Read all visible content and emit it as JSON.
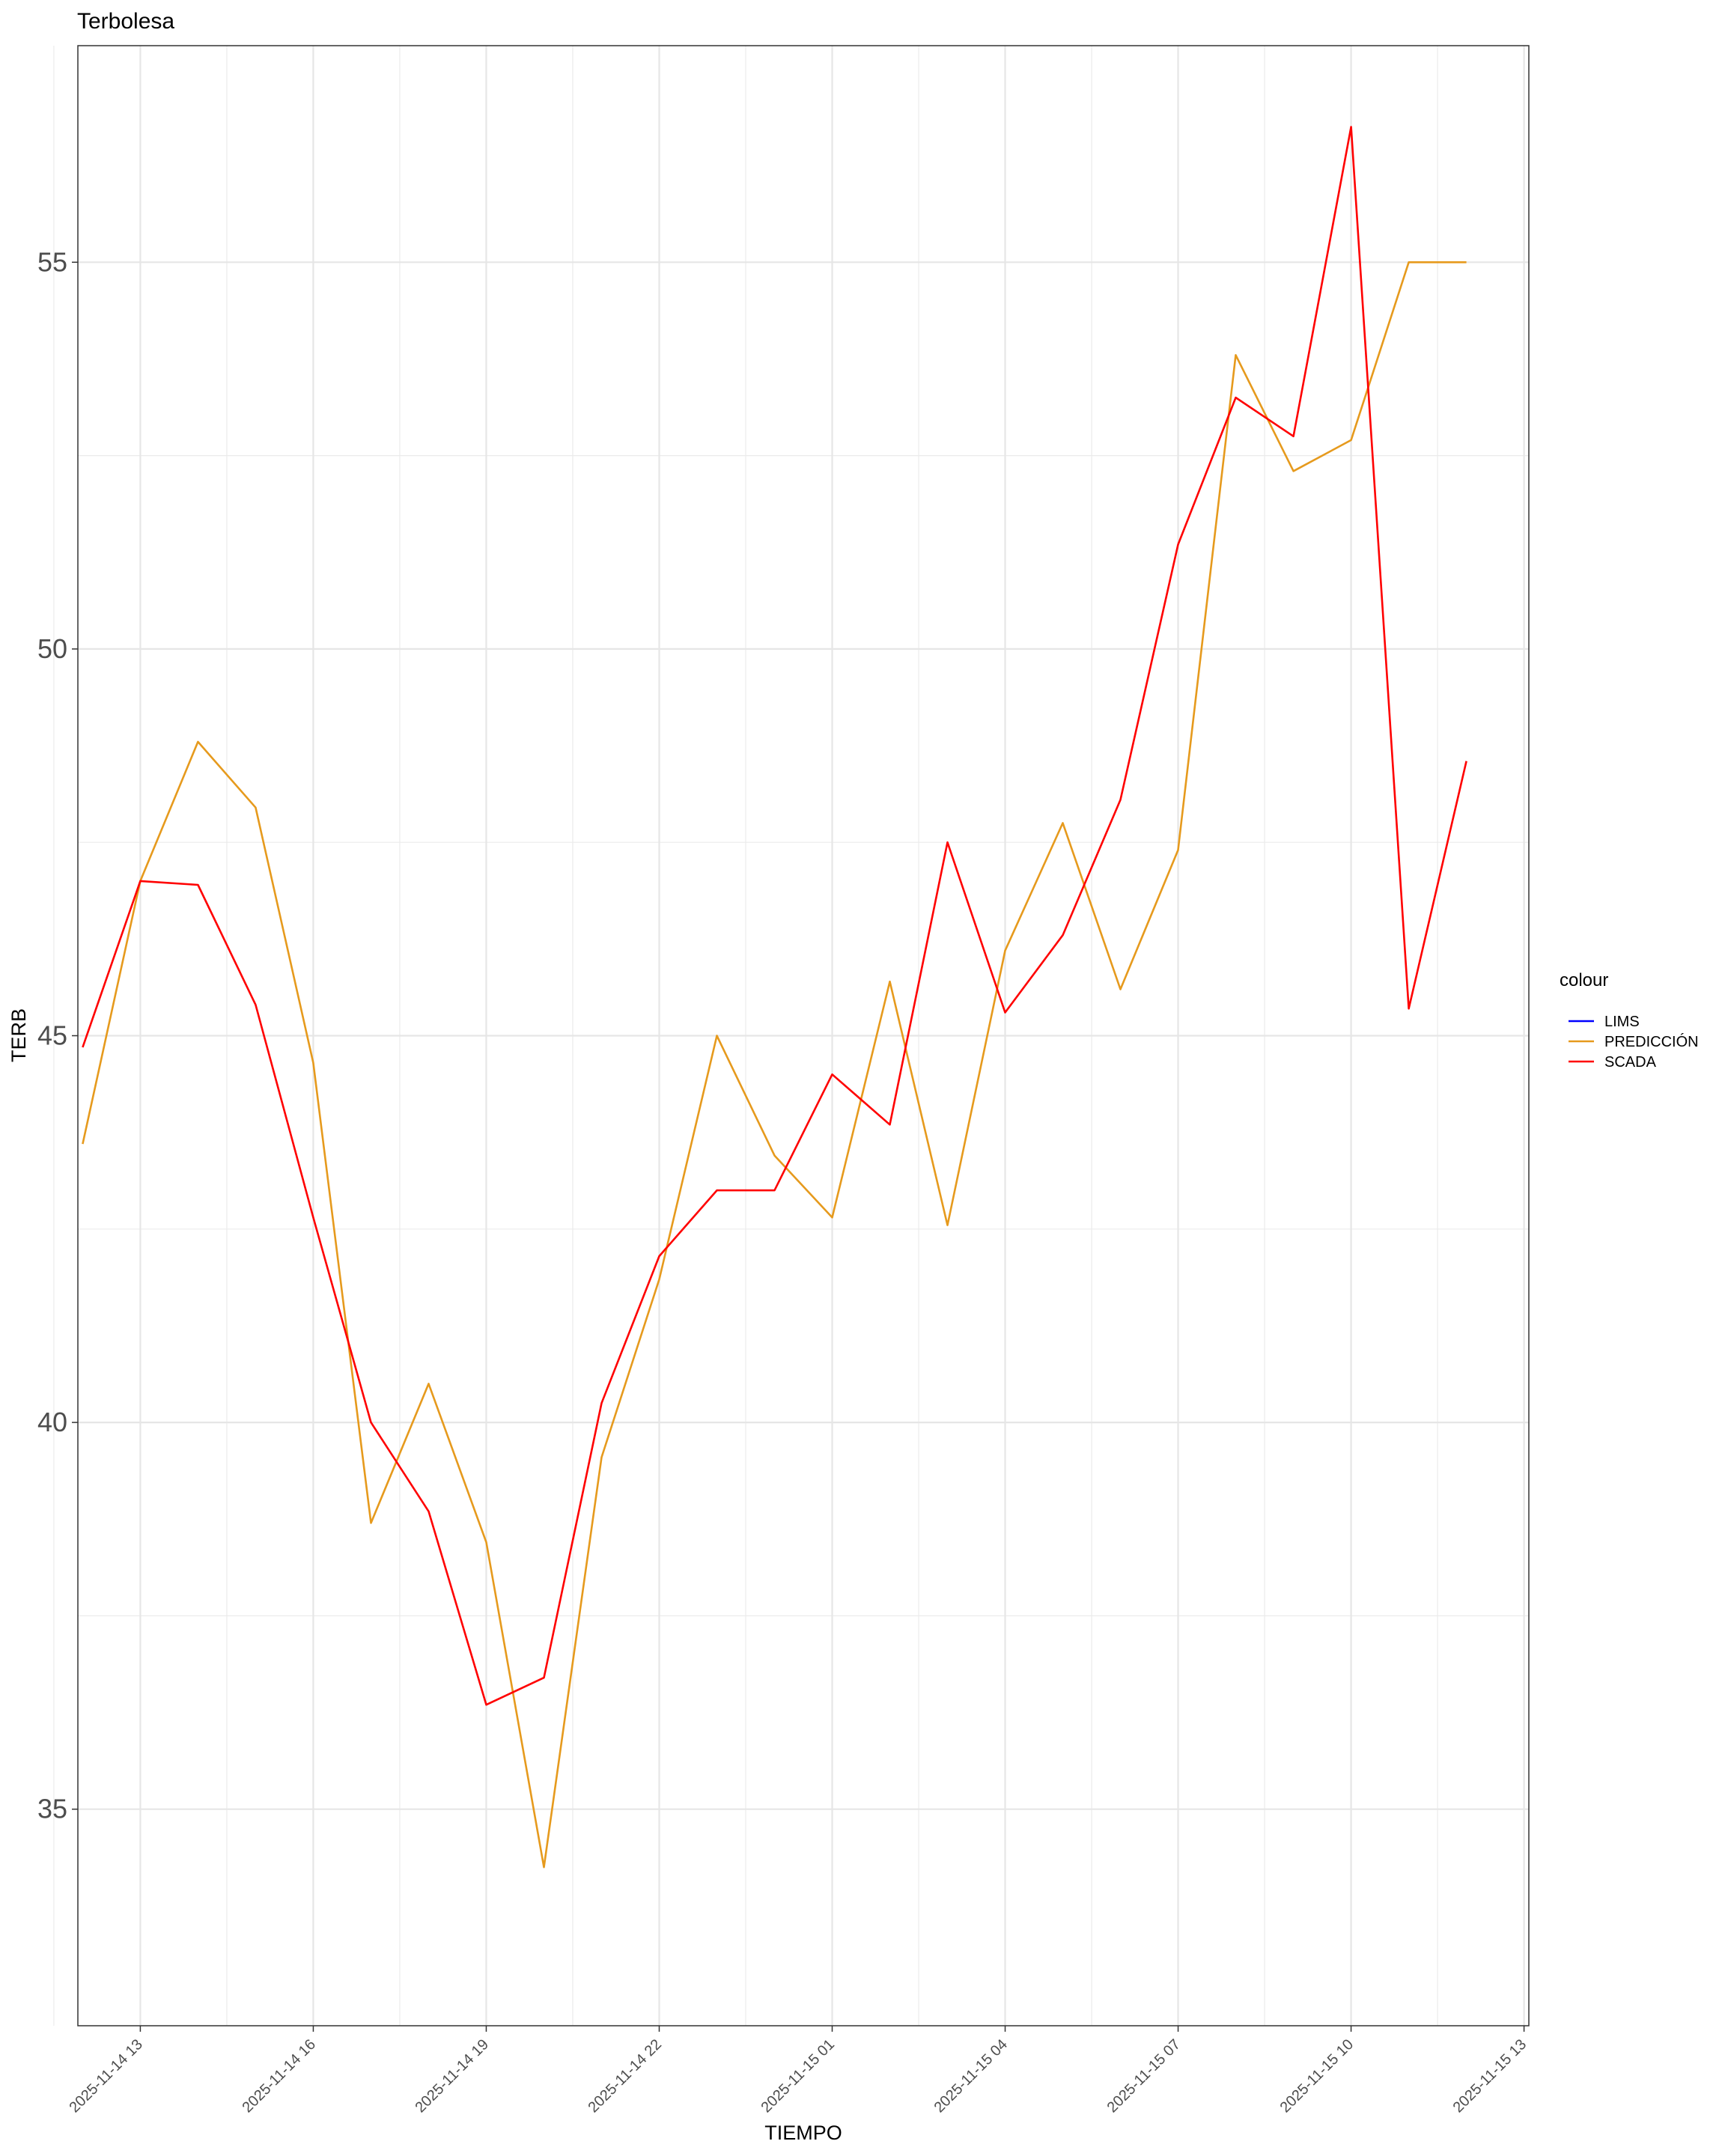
{
  "chart_data": {
    "type": "line",
    "title": "Terbolesa",
    "xlabel": "TIEMPO",
    "ylabel": "TERB",
    "x_ticks": [
      "2025-11-14 13",
      "2025-11-14 16",
      "2025-11-14 19",
      "2025-11-14 22",
      "2025-11-15 01",
      "2025-11-15 04",
      "2025-11-15 07",
      "2025-11-15 10",
      "2025-11-15 13"
    ],
    "y_ticks": [
      35,
      40,
      45,
      50,
      55
    ],
    "ylim": [
      32.2,
      57.8
    ],
    "xlim": [
      "2025-11-14 11:55",
      "2025-11-15 13:05"
    ],
    "grid": true,
    "legend": {
      "title": "colour",
      "position": "right",
      "entries": [
        {
          "name": "LIMS",
          "color": "#0000ff"
        },
        {
          "name": "PREDICCIÓN",
          "color": "#e69a1d"
        },
        {
          "name": "SCADA",
          "color": "#ff0000"
        }
      ]
    },
    "x": [
      "2025-11-14 12:00",
      "2025-11-14 13:00",
      "2025-11-14 14:00",
      "2025-11-14 15:00",
      "2025-11-14 16:00",
      "2025-11-14 17:00",
      "2025-11-14 18:00",
      "2025-11-14 19:00",
      "2025-11-14 20:00",
      "2025-11-14 21:00",
      "2025-11-14 22:00",
      "2025-11-14 23:00",
      "2025-11-15 00:00",
      "2025-11-15 01:00",
      "2025-11-15 02:00",
      "2025-11-15 03:00",
      "2025-11-15 04:00",
      "2025-11-15 05:00",
      "2025-11-15 06:00",
      "2025-11-15 07:00",
      "2025-11-15 08:00",
      "2025-11-15 09:00",
      "2025-11-15 10:00",
      "2025-11-15 11:00",
      "2025-11-15 12:00"
    ],
    "series": [
      {
        "name": "PREDICCIÓN",
        "color": "#e69a1d",
        "values": [
          43.6,
          47.0,
          48.8,
          47.95,
          44.65,
          38.7,
          40.5,
          38.45,
          34.25,
          39.55,
          41.85,
          45.0,
          43.45,
          42.65,
          45.7,
          42.55,
          46.1,
          47.75,
          45.6,
          47.4,
          53.8,
          52.3,
          52.7,
          55.0,
          55.0
        ]
      },
      {
        "name": "SCADA",
        "color": "#ff0000",
        "values": [
          44.85,
          47.0,
          46.95,
          45.4,
          42.65,
          40.0,
          38.85,
          36.35,
          36.7,
          40.25,
          42.15,
          43.0,
          43.0,
          44.5,
          43.85,
          47.5,
          45.3,
          46.3,
          48.05,
          51.35,
          53.25,
          52.75,
          56.75,
          45.35,
          48.55
        ]
      }
    ]
  }
}
